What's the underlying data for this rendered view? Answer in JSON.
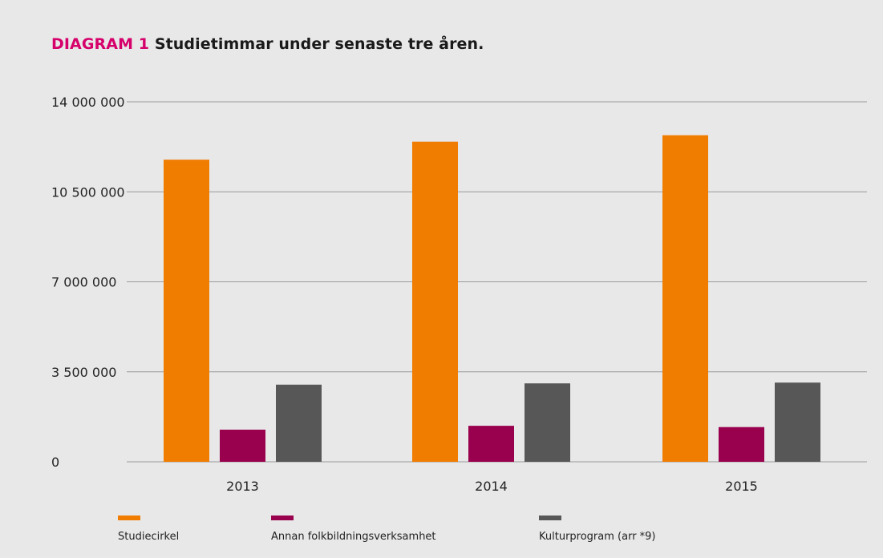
{
  "title": {
    "prefix": "DIAGRAM 1",
    "text": "Studietimmar under senaste tre åren."
  },
  "colors": {
    "background": "#e8e8e8",
    "accent": "#d6006b",
    "grid": "#9a9a9a"
  },
  "chart_data": {
    "type": "bar",
    "categories": [
      "2013",
      "2014",
      "2015"
    ],
    "series": [
      {
        "name": "Studiecirkel",
        "color": "#f07c00",
        "values": [
          11750000,
          12450000,
          12700000
        ]
      },
      {
        "name": "Annan folkbildningsverksamhet",
        "color": "#99004d",
        "values": [
          1250000,
          1400000,
          1350000
        ]
      },
      {
        "name": "Kulturprogram (arr *9)",
        "color": "#575757",
        "values": [
          3000000,
          3050000,
          3080000
        ]
      }
    ],
    "ylim": [
      0,
      14000000
    ],
    "yticks": [
      0,
      3500000,
      7000000,
      10500000,
      14000000
    ],
    "ytick_labels": [
      "0",
      "3 500 000",
      "7 000 000",
      "10 500 000",
      "14 000 000"
    ],
    "grid": true,
    "legend_position": "bottom",
    "xlabel": "",
    "ylabel": ""
  }
}
